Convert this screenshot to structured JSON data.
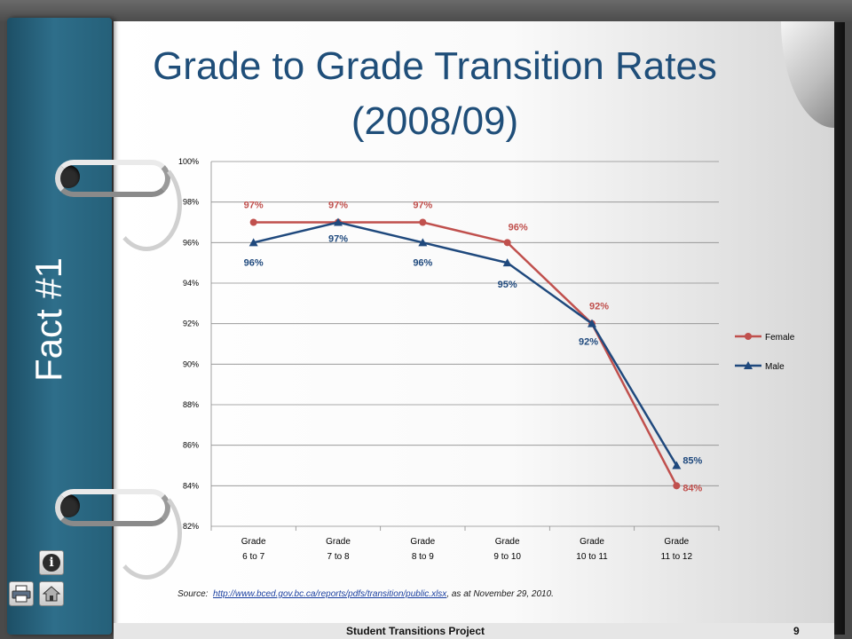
{
  "slide": {
    "title_line1": "Grade to Grade Transition Rates",
    "title_line2": "(2008/09)",
    "side_title": "Fact #1",
    "footer_title": "Student Transitions Project",
    "page_number": "9"
  },
  "source": {
    "prefix": "Source:",
    "link": "http://www.bced.gov.bc.ca/reports/pdfs/transition/public.xlsx",
    "suffix": ",  as at November 29, 2010."
  },
  "nav": {
    "info_icon": "info-icon",
    "print_icon": "printer-icon",
    "home_icon": "home-icon"
  },
  "chart_data": {
    "type": "line",
    "title": "",
    "xlabel": "",
    "ylabel": "",
    "ylim": [
      82,
      100
    ],
    "ytick_step": 2,
    "y_tick_format": "{v}%",
    "grid": true,
    "legend_placement": "right",
    "categories": [
      [
        "Grade",
        "6 to 7"
      ],
      [
        "Grade",
        "7 to 8"
      ],
      [
        "Grade",
        "8 to 9"
      ],
      [
        "Grade",
        "9 to 10"
      ],
      [
        "Grade",
        "10 to 11"
      ],
      [
        "Grade",
        "11 to 12"
      ]
    ],
    "series": [
      {
        "name": "Female",
        "color": "#c0504d",
        "marker": "circle",
        "values": [
          97,
          97,
          97,
          96,
          92,
          84
        ],
        "labels": [
          "97%",
          "97%",
          "97%",
          "96%",
          "92%",
          "84%"
        ]
      },
      {
        "name": "Male",
        "color": "#1f497d",
        "marker": "triangle",
        "values": [
          96,
          97,
          96,
          95,
          92,
          85
        ],
        "labels": [
          "96%",
          "97%",
          "96%",
          "95%",
          "92%",
          "85%"
        ]
      }
    ]
  }
}
